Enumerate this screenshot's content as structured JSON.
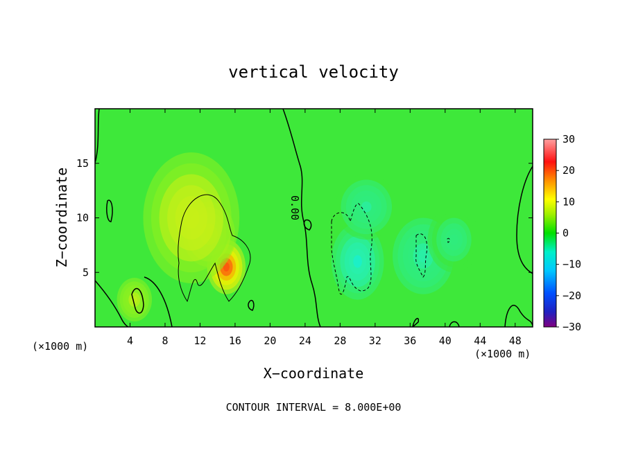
{
  "chart_data": {
    "type": "heatmap",
    "title": "vertical velocity",
    "xlabel": "X−coordinate",
    "ylabel": "Z−coordinate",
    "x_unit": "(×1000 m)",
    "x_unit_right": "(×1000 m)",
    "footnote": "CONTOUR INTERVAL = 8.000E+00",
    "contour_label": "0.00",
    "xlim": [
      0,
      50
    ],
    "ylim": [
      0,
      20
    ],
    "x_ticks": [
      4,
      8,
      12,
      16,
      20,
      24,
      28,
      32,
      36,
      40,
      44,
      48
    ],
    "y_ticks": [
      5,
      10,
      15
    ],
    "colorbar": {
      "range": [
        -30,
        30
      ],
      "ticks": [
        30,
        20,
        10,
        0,
        -10,
        -20,
        -30
      ],
      "tick_labels": [
        "30",
        "20",
        "10",
        "0",
        "−10",
        "−20",
        "−30"
      ]
    },
    "features": [
      {
        "type": "updraft",
        "x": 15,
        "z": 5.5,
        "w": 14,
        "sx": 2.2,
        "sz": 2.5
      },
      {
        "type": "updraft",
        "x": 13,
        "z": 8.5,
        "w": 8,
        "sx": 3.0,
        "sz": 3.0
      },
      {
        "type": "updraft",
        "x": 11,
        "z": 10,
        "w": 5,
        "sx": 5.5,
        "sz": 6.0
      },
      {
        "type": "updraft",
        "x": 4.5,
        "z": 2.5,
        "w": 4,
        "sx": 2.0,
        "sz": 2.0
      },
      {
        "type": "downdraft",
        "x": 30,
        "z": 6,
        "w": -9,
        "sx": 3.0,
        "sz": 3.5
      },
      {
        "type": "downdraft",
        "x": 31,
        "z": 11,
        "w": -5,
        "sx": 3.5,
        "sz": 3.0
      },
      {
        "type": "downdraft",
        "x": 37.5,
        "z": 6.5,
        "w": -6,
        "sx": 3.5,
        "sz": 3.5
      },
      {
        "type": "downdraft",
        "x": 41,
        "z": 8,
        "w": -4,
        "sx": 3.0,
        "sz": 3.0
      }
    ]
  }
}
